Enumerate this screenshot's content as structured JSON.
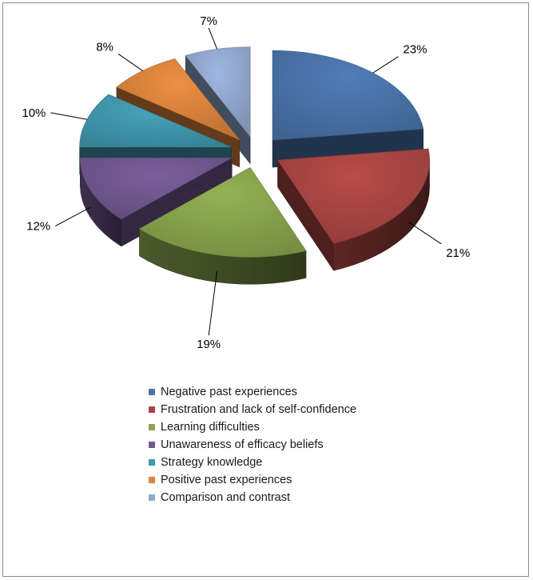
{
  "chart_data": {
    "type": "pie",
    "style": "3d-exploded",
    "title": "",
    "legend_position": "bottom",
    "slices": [
      {
        "label": "Negative past experiences",
        "value": 23,
        "value_label": "23%",
        "color": "#4A74AA"
      },
      {
        "label": "Frustration and lack of self-confidence",
        "value": 21,
        "value_label": "21%",
        "color": "#AA4644"
      },
      {
        "label": "Learning difficulties",
        "value": 19,
        "value_label": "19%",
        "color": "#89A54E"
      },
      {
        "label": "Unawareness of efficacy beliefs",
        "value": 12,
        "value_label": "12%",
        "color": "#71588F"
      },
      {
        "label": "Strategy knowledge",
        "value": 10,
        "value_label": "10%",
        "color": "#4198AF"
      },
      {
        "label": "Positive past experiences",
        "value": 8,
        "value_label": "8%",
        "color": "#DB843D"
      },
      {
        "label": "Comparison and contrast",
        "value": 7,
        "value_label": "7%",
        "color": "#93A9CF"
      }
    ]
  }
}
